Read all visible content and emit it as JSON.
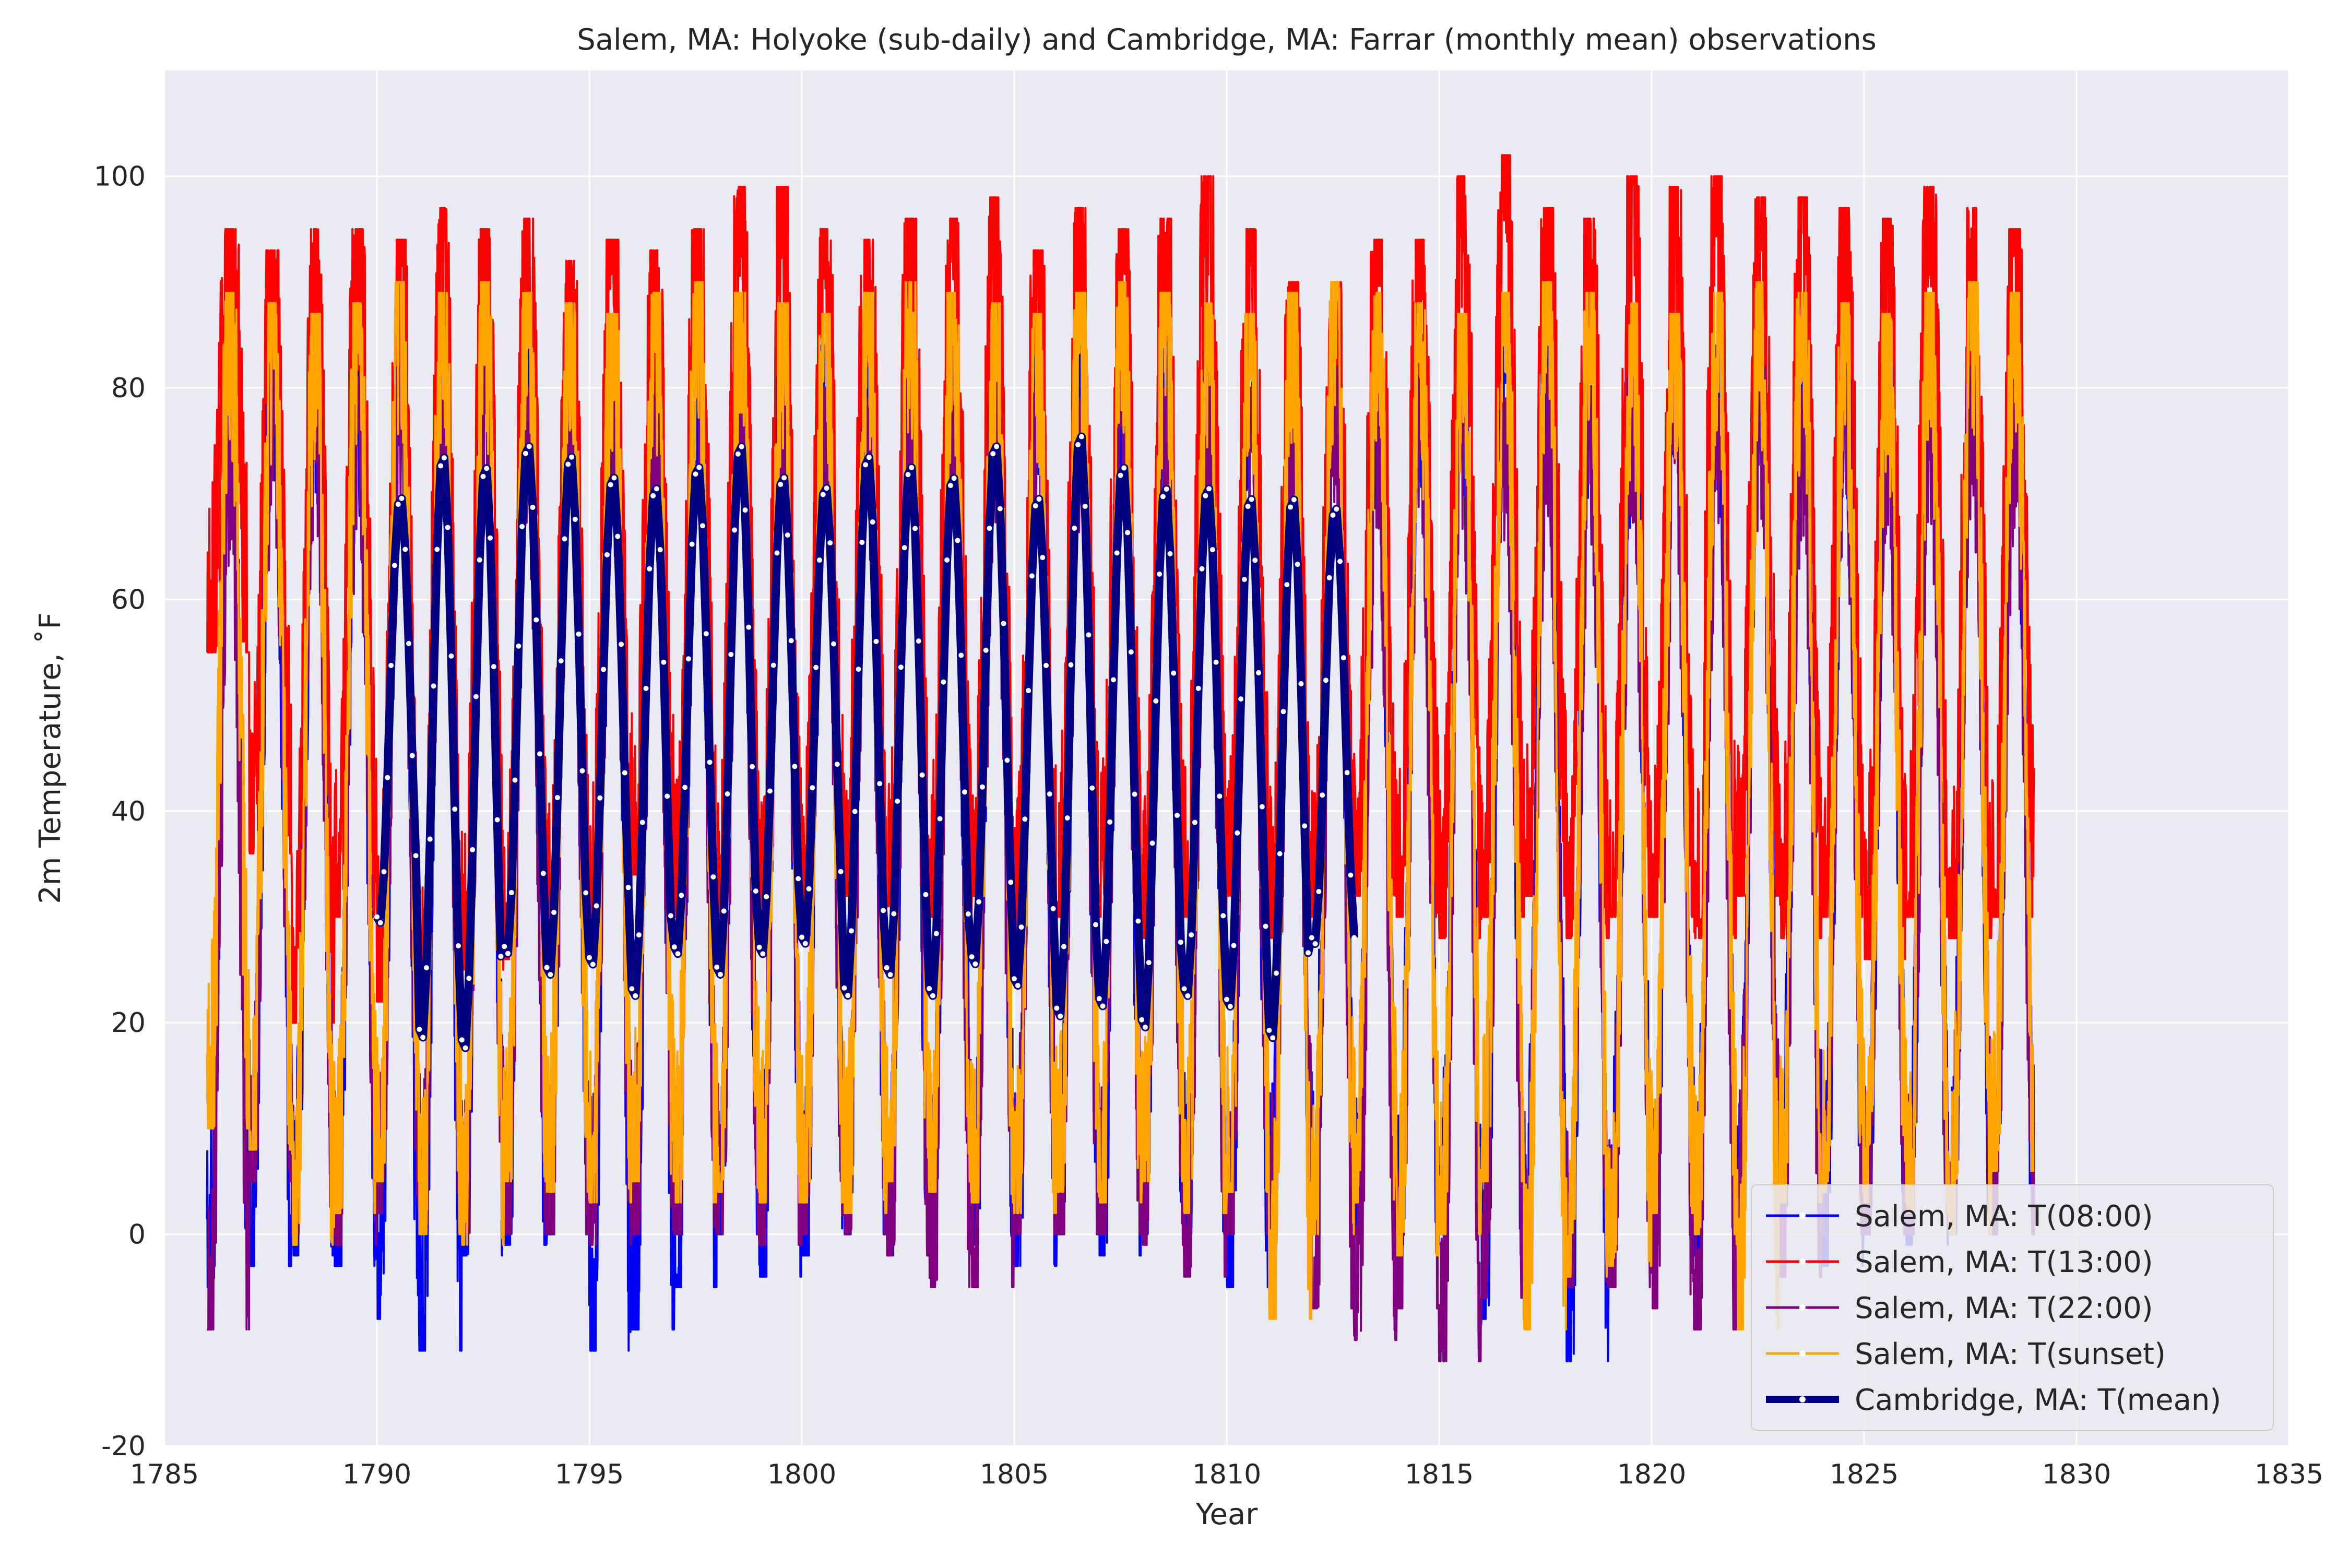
{
  "chart_data": {
    "type": "line",
    "title": "Salem, MA: Holyoke (sub-daily) and Cambridge, MA: Farrar (monthly mean) observations",
    "xlabel": "Year",
    "ylabel": "2m Temperature, ˚F",
    "xlim": [
      1785,
      1835
    ],
    "ylim": [
      -20,
      110
    ],
    "xticks": [
      1785,
      1790,
      1795,
      1800,
      1805,
      1810,
      1815,
      1820,
      1825,
      1830,
      1835
    ],
    "yticks": [
      -20,
      0,
      20,
      40,
      60,
      80,
      100
    ],
    "grid": true,
    "legend_position": "lower-right",
    "series": [
      {
        "name": "Salem, MA: T(08:00)",
        "color": "#0000ff",
        "start": 1786.0,
        "end": 1829.0,
        "summer_peak_values": [
          85,
          86,
          84,
          83,
          85,
          84,
          86,
          85,
          84,
          83,
          85,
          86,
          84,
          85,
          84,
          83,
          85,
          84,
          86,
          85,
          84,
          83,
          85,
          84,
          86,
          85,
          84,
          83,
          85,
          84,
          86,
          85,
          84,
          83,
          85,
          84,
          86,
          85,
          84,
          83,
          85,
          84,
          86
        ],
        "winter_trough_values": [
          -5,
          -3,
          -2,
          -3,
          -8,
          -11,
          -2,
          -1,
          0,
          -11,
          -9,
          -5,
          0,
          -4,
          -2,
          0,
          -2,
          0,
          -1,
          -3,
          0,
          -2,
          0,
          0,
          -5,
          0,
          2,
          0,
          -1,
          0,
          -8,
          0,
          -12,
          0,
          -1,
          -2,
          0,
          2,
          -3,
          0,
          -1,
          0,
          1
        ]
      },
      {
        "name": "Salem, MA: T(13:00)",
        "color": "#ff0000",
        "start": 1786.0,
        "end": 1829.0,
        "summer_peak_values": [
          95,
          93,
          95,
          95,
          94,
          97,
          95,
          96,
          92,
          94,
          93,
          95,
          99,
          99,
          95,
          94,
          96,
          96,
          98,
          93,
          97,
          95,
          96,
          100,
          95,
          90,
          90,
          94,
          94,
          100,
          102,
          97,
          96,
          100,
          99,
          100,
          98,
          98,
          97,
          96,
          99,
          97,
          95
        ],
        "winter_trough_values": [
          55,
          36,
          20,
          30,
          22,
          20,
          25,
          26,
          27,
          30,
          34,
          30,
          30,
          28,
          30,
          32,
          31,
          30,
          32,
          28,
          30,
          30,
          28,
          30,
          32,
          28,
          30,
          32,
          30,
          28,
          30,
          32,
          28,
          30,
          30,
          28,
          32,
          28,
          30,
          26,
          30,
          28,
          30
        ]
      },
      {
        "name": "Salem, MA: T(22:00)",
        "color": "#800080",
        "start": 1786.0,
        "end": 1829.0,
        "summer_peak_values": [
          77,
          82,
          80,
          81,
          82,
          80,
          82,
          80,
          81,
          80,
          79,
          82,
          80,
          81,
          80,
          79,
          82,
          80,
          81,
          80,
          79,
          82,
          80,
          81,
          80,
          79,
          82,
          80,
          81,
          80,
          79,
          82,
          80,
          81,
          80,
          79,
          82,
          80,
          81,
          80,
          79,
          82,
          80
        ],
        "winter_trough_values": [
          -9,
          5,
          0,
          -1,
          2,
          0,
          0,
          0,
          0,
          -1,
          0,
          0,
          0,
          -1,
          0,
          0,
          -2,
          -5,
          -5,
          0,
          0,
          0,
          -1,
          -4,
          0,
          0,
          -7,
          -10,
          -7,
          -12,
          -6,
          -3,
          -5,
          -5,
          -7,
          -9,
          0,
          -4,
          0,
          0,
          0,
          0,
          0
        ]
      },
      {
        "name": "Salem, MA: T(sunset)",
        "color": "#ffa500",
        "start": 1786.0,
        "end": 1829.0,
        "summer_peak_values": [
          89,
          88,
          87,
          88,
          90,
          89,
          90,
          89,
          88,
          87,
          89,
          90,
          89,
          88,
          87,
          89,
          90,
          89,
          88,
          87,
          89,
          90,
          89,
          88,
          87,
          89,
          90,
          89,
          88,
          87,
          89,
          90,
          89,
          88,
          87,
          89,
          90,
          89,
          88,
          87,
          89,
          90,
          89
        ],
        "winter_trough_values": [
          10,
          8,
          -1,
          2,
          5,
          0,
          -1,
          5,
          4,
          3,
          5,
          3,
          4,
          3,
          3,
          2,
          5,
          4,
          3,
          2,
          4,
          3,
          5,
          2,
          4,
          -8,
          0,
          3,
          -2,
          0,
          5,
          -9,
          -4,
          -3,
          2,
          0,
          -9,
          3,
          4,
          3,
          2,
          0,
          6
        ]
      },
      {
        "name": "Cambridge, MA: T(mean)",
        "color": "#000080",
        "start": 1790.0,
        "end": 1813.0,
        "summer_peak_values": [
          70,
          74,
          73,
          75,
          74,
          72,
          71,
          73,
          75,
          72,
          71,
          74,
          73,
          72,
          75,
          70,
          76,
          73,
          71,
          71,
          70,
          70,
          69
        ],
        "winter_trough_values": [
          29,
          18,
          17,
          26,
          24,
          25,
          22,
          26,
          24,
          26,
          27,
          22,
          24,
          22,
          25,
          23,
          20,
          21,
          19,
          22,
          21,
          18,
          27
        ]
      }
    ]
  }
}
